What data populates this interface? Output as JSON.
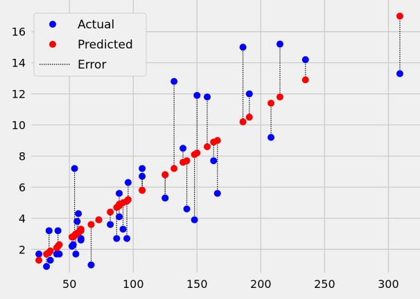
{
  "chart_data": {
    "type": "scatter",
    "title": "",
    "xlabel": "",
    "ylabel": "",
    "xlim": [
      20,
      315
    ],
    "ylim": [
      0.5,
      17.5
    ],
    "xticks": [
      50,
      100,
      150,
      200,
      250,
      300
    ],
    "yticks": [
      2,
      4,
      6,
      8,
      10,
      12,
      14,
      16
    ],
    "grid": true,
    "legend_position": "top-left",
    "colors": {
      "actual": "#0000ff",
      "predicted": "#ff0000",
      "error": "#000000",
      "background": "#f0f0f0",
      "grid": "#cbcbcb"
    },
    "legend": [
      "Actual",
      "Predicted",
      "Error"
    ],
    "x": [
      26,
      32,
      34,
      35,
      40,
      41,
      42,
      52,
      53,
      54,
      55,
      56,
      57,
      59,
      59,
      67,
      73,
      82,
      87,
      89,
      89,
      92,
      95,
      96,
      107,
      107,
      125,
      125,
      132,
      139,
      142,
      148,
      150,
      158,
      163,
      166,
      186,
      191,
      208,
      215,
      235,
      309
    ],
    "actual": [
      1.7,
      0.9,
      3.2,
      1.3,
      1.7,
      3.2,
      1.7,
      2.2,
      2.3,
      7.2,
      1.7,
      3.8,
      4.3,
      2.6,
      2.7,
      1.0,
      3.9,
      3.6,
      2.7,
      4.1,
      5.6,
      3.3,
      2.7,
      6.3,
      6.7,
      7.2,
      5.3,
      5.3,
      12.8,
      8.5,
      4.6,
      3.9,
      11.9,
      11.8,
      7.7,
      5.6,
      15.0,
      12.0,
      9.2,
      15.2,
      14.2,
      13.3
    ],
    "predicted": [
      1.3,
      1.7,
      1.8,
      1.9,
      2.1,
      2.2,
      2.3,
      2.8,
      2.8,
      2.9,
      3.0,
      3.0,
      3.1,
      3.2,
      3.3,
      3.6,
      3.9,
      4.4,
      4.7,
      4.8,
      4.9,
      5.0,
      5.1,
      5.2,
      5.8,
      5.8,
      6.8,
      6.8,
      7.2,
      7.6,
      7.7,
      8.1,
      8.2,
      8.6,
      8.9,
      9.0,
      10.2,
      10.5,
      11.4,
      11.8,
      12.9,
      17.0
    ]
  }
}
